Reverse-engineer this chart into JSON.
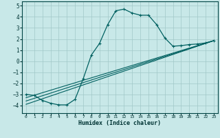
{
  "title": "",
  "xlabel": "Humidex (Indice chaleur)",
  "ylabel": "",
  "bg_color": "#c8e8e8",
  "grid_color": "#a0c8c8",
  "line_color": "#006060",
  "xlim": [
    -0.5,
    23.5
  ],
  "ylim": [
    -4.7,
    5.4
  ],
  "xticks": [
    0,
    1,
    2,
    3,
    4,
    5,
    6,
    7,
    8,
    9,
    10,
    11,
    12,
    13,
    14,
    15,
    16,
    17,
    18,
    19,
    20,
    21,
    22,
    23
  ],
  "yticks": [
    -4,
    -3,
    -2,
    -1,
    0,
    1,
    2,
    3,
    4,
    5
  ],
  "curve1_x": [
    0,
    1,
    2,
    3,
    4,
    5,
    6,
    7,
    8,
    9,
    10,
    11,
    12,
    13,
    14,
    15,
    16,
    17,
    18,
    19,
    20,
    21,
    22,
    23
  ],
  "curve1_y": [
    -3.0,
    -3.1,
    -3.55,
    -3.8,
    -3.95,
    -3.95,
    -3.45,
    -1.6,
    0.55,
    1.6,
    3.3,
    4.55,
    4.7,
    4.35,
    4.15,
    4.15,
    3.3,
    2.1,
    1.35,
    1.4,
    1.5,
    1.55,
    1.65,
    1.85
  ],
  "line2_x": [
    0,
    23
  ],
  "line2_y": [
    -3.3,
    1.85
  ],
  "line3_x": [
    0,
    23
  ],
  "line3_y": [
    -3.9,
    1.85
  ],
  "line4_x": [
    0,
    23
  ],
  "line4_y": [
    -3.6,
    1.85
  ]
}
